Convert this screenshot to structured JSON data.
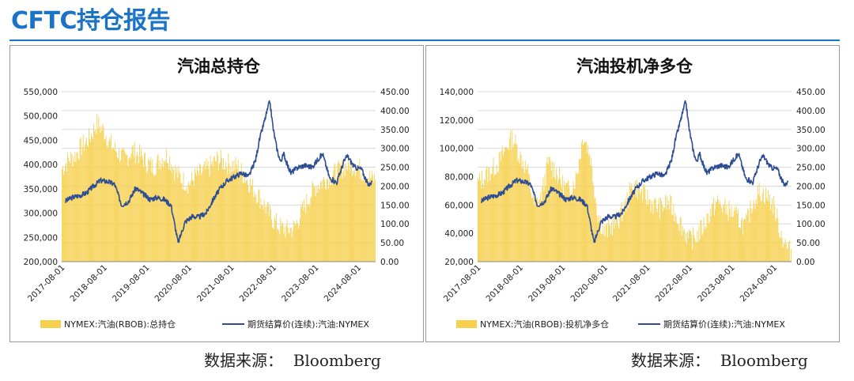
{
  "header": {
    "title": "CFTC持仓报告"
  },
  "colors": {
    "title": "#1b73c6",
    "bars": "#f6d04d",
    "line": "#2e4d93",
    "grid": "#d9d9d9"
  },
  "sources": {
    "left": "数据来源：  Bloomberg",
    "right": "数据来源：  Bloomberg"
  },
  "chart_data": [
    {
      "type": "bar",
      "title": "汽油总持仓",
      "x_ticks": [
        "2017-08-01",
        "2018-08-01",
        "2019-08-01",
        "2020-08-01",
        "2021-08-01",
        "2022-08-01",
        "2023-08-01",
        "2024-08-01"
      ],
      "x_range": [
        "2017-07-01",
        "2024-12-01"
      ],
      "y_left": {
        "min": 200000,
        "max": 550000,
        "ticks": [
          "200,000",
          "250,000",
          "300,000",
          "350,000",
          "400,000",
          "450,000",
          "500,000",
          "550,000"
        ]
      },
      "y_right": {
        "min": 0,
        "max": 450,
        "ticks": [
          "0.00",
          "50.00",
          "100.00",
          "150.00",
          "200.00",
          "250.00",
          "300.00",
          "350.00",
          "400.00",
          "450.00"
        ]
      },
      "legend": [
        "NYMEX:汽油(RBOB):总持仓",
        "期货结算价(连续):汽油:NYMEX"
      ],
      "grid": true,
      "legend_position": "bottom",
      "series": [
        {
          "axis": "left",
          "kind": "bar",
          "points": [
            [
              "2017-07",
              390000
            ],
            [
              "2017-09",
              410000
            ],
            [
              "2017-11",
              420000
            ],
            [
              "2018-01",
              440000
            ],
            [
              "2018-03",
              455000
            ],
            [
              "2018-05",
              485000
            ],
            [
              "2018-07",
              470000
            ],
            [
              "2018-09",
              440000
            ],
            [
              "2018-11",
              425000
            ],
            [
              "2019-01",
              410000
            ],
            [
              "2019-03",
              430000
            ],
            [
              "2019-05",
              420000
            ],
            [
              "2019-07",
              405000
            ],
            [
              "2019-09",
              395000
            ],
            [
              "2019-11",
              410000
            ],
            [
              "2020-01",
              420000
            ],
            [
              "2020-03",
              390000
            ],
            [
              "2020-05",
              370000
            ],
            [
              "2020-07",
              360000
            ],
            [
              "2020-09",
              375000
            ],
            [
              "2020-11",
              385000
            ],
            [
              "2021-01",
              395000
            ],
            [
              "2021-03",
              410000
            ],
            [
              "2021-05",
              405000
            ],
            [
              "2021-07",
              400000
            ],
            [
              "2021-09",
              395000
            ],
            [
              "2021-11",
              375000
            ],
            [
              "2022-01",
              355000
            ],
            [
              "2022-03",
              335000
            ],
            [
              "2022-05",
              310000
            ],
            [
              "2022-07",
              285000
            ],
            [
              "2022-09",
              270000
            ],
            [
              "2022-11",
              265000
            ],
            [
              "2023-01",
              270000
            ],
            [
              "2023-03",
              300000
            ],
            [
              "2023-05",
              330000
            ],
            [
              "2023-07",
              355000
            ],
            [
              "2023-09",
              365000
            ],
            [
              "2023-11",
              375000
            ],
            [
              "2024-01",
              385000
            ],
            [
              "2024-03",
              395000
            ],
            [
              "2024-05",
              400000
            ],
            [
              "2024-07",
              395000
            ],
            [
              "2024-09",
              380000
            ],
            [
              "2024-11",
              370000
            ]
          ]
        },
        {
          "axis": "right",
          "kind": "line",
          "points": [
            [
              "2017-08",
              160
            ],
            [
              "2017-10",
              170
            ],
            [
              "2017-12",
              175
            ],
            [
              "2018-02",
              182
            ],
            [
              "2018-04",
              200
            ],
            [
              "2018-06",
              215
            ],
            [
              "2018-08",
              212
            ],
            [
              "2018-10",
              205
            ],
            [
              "2018-12",
              150
            ],
            [
              "2019-02",
              160
            ],
            [
              "2019-04",
              195
            ],
            [
              "2019-06",
              180
            ],
            [
              "2019-08",
              165
            ],
            [
              "2019-10",
              170
            ],
            [
              "2019-12",
              165
            ],
            [
              "2020-02",
              150
            ],
            [
              "2020-04",
              50
            ],
            [
              "2020-06",
              105
            ],
            [
              "2020-08",
              120
            ],
            [
              "2020-10",
              118
            ],
            [
              "2020-12",
              130
            ],
            [
              "2021-02",
              165
            ],
            [
              "2021-04",
              195
            ],
            [
              "2021-06",
              215
            ],
            [
              "2021-08",
              225
            ],
            [
              "2021-10",
              235
            ],
            [
              "2021-12",
              225
            ],
            [
              "2022-02",
              270
            ],
            [
              "2022-03",
              320
            ],
            [
              "2022-05",
              390
            ],
            [
              "2022-06",
              425
            ],
            [
              "2022-07",
              350
            ],
            [
              "2022-08",
              300
            ],
            [
              "2022-09",
              265
            ],
            [
              "2022-10",
              285
            ],
            [
              "2022-11",
              255
            ],
            [
              "2022-12",
              235
            ],
            [
              "2023-02",
              250
            ],
            [
              "2023-04",
              255
            ],
            [
              "2023-06",
              250
            ],
            [
              "2023-08",
              275
            ],
            [
              "2023-09",
              285
            ],
            [
              "2023-11",
              220
            ],
            [
              "2024-01",
              210
            ],
            [
              "2024-03",
              265
            ],
            [
              "2024-04",
              280
            ],
            [
              "2024-06",
              250
            ],
            [
              "2024-08",
              245
            ],
            [
              "2024-10",
              200
            ],
            [
              "2024-11",
              215
            ]
          ]
        }
      ]
    },
    {
      "type": "bar",
      "title": "汽油投机净多仓",
      "x_ticks": [
        "2017-08-01",
        "2018-08-01",
        "2019-08-01",
        "2020-08-01",
        "2021-08-01",
        "2022-08-01",
        "2023-08-01",
        "2024-08-01"
      ],
      "x_range": [
        "2017-07-01",
        "2024-12-01"
      ],
      "y_left": {
        "min": 20000,
        "max": 140000,
        "ticks": [
          "20,000",
          "40,000",
          "60,000",
          "80,000",
          "100,000",
          "120,000",
          "140,000"
        ]
      },
      "y_right": {
        "min": 0,
        "max": 450,
        "ticks": [
          "0.00",
          "50.00",
          "100.00",
          "150.00",
          "200.00",
          "250.00",
          "300.00",
          "350.00",
          "400.00",
          "450.00"
        ]
      },
      "legend": [
        "NYMEX:汽油(RBOB):投机净多仓",
        "期货结算价(连续):汽油:NYMEX"
      ],
      "grid": true,
      "legend_position": "bottom",
      "series": [
        {
          "axis": "left",
          "kind": "bar",
          "points": [
            [
              "2017-07",
              75000
            ],
            [
              "2017-09",
              80000
            ],
            [
              "2017-11",
              85000
            ],
            [
              "2018-01",
              90000
            ],
            [
              "2018-03",
              100000
            ],
            [
              "2018-05",
              108000
            ],
            [
              "2018-07",
              95000
            ],
            [
              "2018-09",
              85000
            ],
            [
              "2018-11",
              60000
            ],
            [
              "2019-01",
              65000
            ],
            [
              "2019-03",
              90000
            ],
            [
              "2019-05",
              85000
            ],
            [
              "2019-07",
              75000
            ],
            [
              "2019-09",
              70000
            ],
            [
              "2019-11",
              80000
            ],
            [
              "2020-01",
              110000
            ],
            [
              "2020-03",
              95000
            ],
            [
              "2020-05",
              55000
            ],
            [
              "2020-07",
              40000
            ],
            [
              "2020-09",
              45000
            ],
            [
              "2020-11",
              50000
            ],
            [
              "2021-01",
              60000
            ],
            [
              "2021-03",
              75000
            ],
            [
              "2021-05",
              70000
            ],
            [
              "2021-07",
              65000
            ],
            [
              "2021-09",
              60000
            ],
            [
              "2021-11",
              58000
            ],
            [
              "2022-01",
              62000
            ],
            [
              "2022-03",
              55000
            ],
            [
              "2022-05",
              45000
            ],
            [
              "2022-07",
              35000
            ],
            [
              "2022-09",
              38000
            ],
            [
              "2022-11",
              45000
            ],
            [
              "2023-01",
              55000
            ],
            [
              "2023-03",
              62000
            ],
            [
              "2023-05",
              58000
            ],
            [
              "2023-07",
              55000
            ],
            [
              "2023-09",
              50000
            ],
            [
              "2023-11",
              45000
            ],
            [
              "2024-01",
              62000
            ],
            [
              "2024-03",
              70000
            ],
            [
              "2024-05",
              66000
            ],
            [
              "2024-07",
              60000
            ],
            [
              "2024-09",
              40000
            ],
            [
              "2024-11",
              28000
            ]
          ]
        },
        {
          "axis": "right",
          "kind": "line",
          "points": [
            [
              "2017-08",
              160
            ],
            [
              "2017-10",
              170
            ],
            [
              "2017-12",
              175
            ],
            [
              "2018-02",
              182
            ],
            [
              "2018-04",
              200
            ],
            [
              "2018-06",
              215
            ],
            [
              "2018-08",
              212
            ],
            [
              "2018-10",
              205
            ],
            [
              "2018-12",
              150
            ],
            [
              "2019-02",
              160
            ],
            [
              "2019-04",
              195
            ],
            [
              "2019-06",
              180
            ],
            [
              "2019-08",
              165
            ],
            [
              "2019-10",
              170
            ],
            [
              "2019-12",
              165
            ],
            [
              "2020-02",
              150
            ],
            [
              "2020-04",
              50
            ],
            [
              "2020-06",
              105
            ],
            [
              "2020-08",
              120
            ],
            [
              "2020-10",
              118
            ],
            [
              "2020-12",
              130
            ],
            [
              "2021-02",
              165
            ],
            [
              "2021-04",
              195
            ],
            [
              "2021-06",
              215
            ],
            [
              "2021-08",
              225
            ],
            [
              "2021-10",
              235
            ],
            [
              "2021-12",
              225
            ],
            [
              "2022-02",
              270
            ],
            [
              "2022-03",
              320
            ],
            [
              "2022-05",
              390
            ],
            [
              "2022-06",
              425
            ],
            [
              "2022-07",
              350
            ],
            [
              "2022-08",
              300
            ],
            [
              "2022-09",
              265
            ],
            [
              "2022-10",
              285
            ],
            [
              "2022-11",
              255
            ],
            [
              "2022-12",
              235
            ],
            [
              "2023-02",
              250
            ],
            [
              "2023-04",
              255
            ],
            [
              "2023-06",
              250
            ],
            [
              "2023-08",
              275
            ],
            [
              "2023-09",
              285
            ],
            [
              "2023-11",
              220
            ],
            [
              "2024-01",
              210
            ],
            [
              "2024-03",
              265
            ],
            [
              "2024-04",
              280
            ],
            [
              "2024-06",
              250
            ],
            [
              "2024-08",
              245
            ],
            [
              "2024-10",
              200
            ],
            [
              "2024-11",
              215
            ]
          ]
        }
      ]
    }
  ]
}
